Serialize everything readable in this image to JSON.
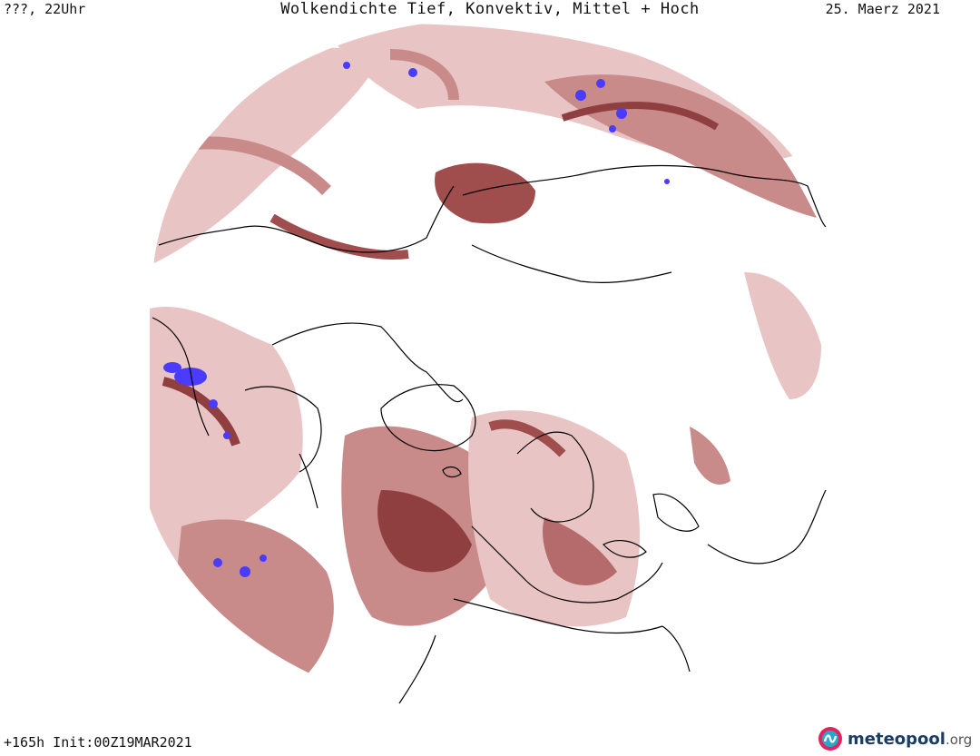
{
  "header": {
    "left": "???, 22Uhr",
    "title": "Wolkendichte  Tief, Konvektiv, Mittel + Hoch",
    "date": "25. Maerz 2021"
  },
  "footer": {
    "run": "+165h Init:00Z19MAR2021"
  },
  "logo": {
    "name": "meteopool",
    "tld": ".org"
  },
  "map": {
    "projection": "polar stereographic, north pole centered",
    "colors": {
      "cloud_light": "#e9c4c4",
      "cloud_mid": "#c98a8a",
      "cloud_dark": "#8f3f3f",
      "convective": "#4a3bff",
      "coastline": "#000000",
      "background": "#ffffff"
    }
  }
}
